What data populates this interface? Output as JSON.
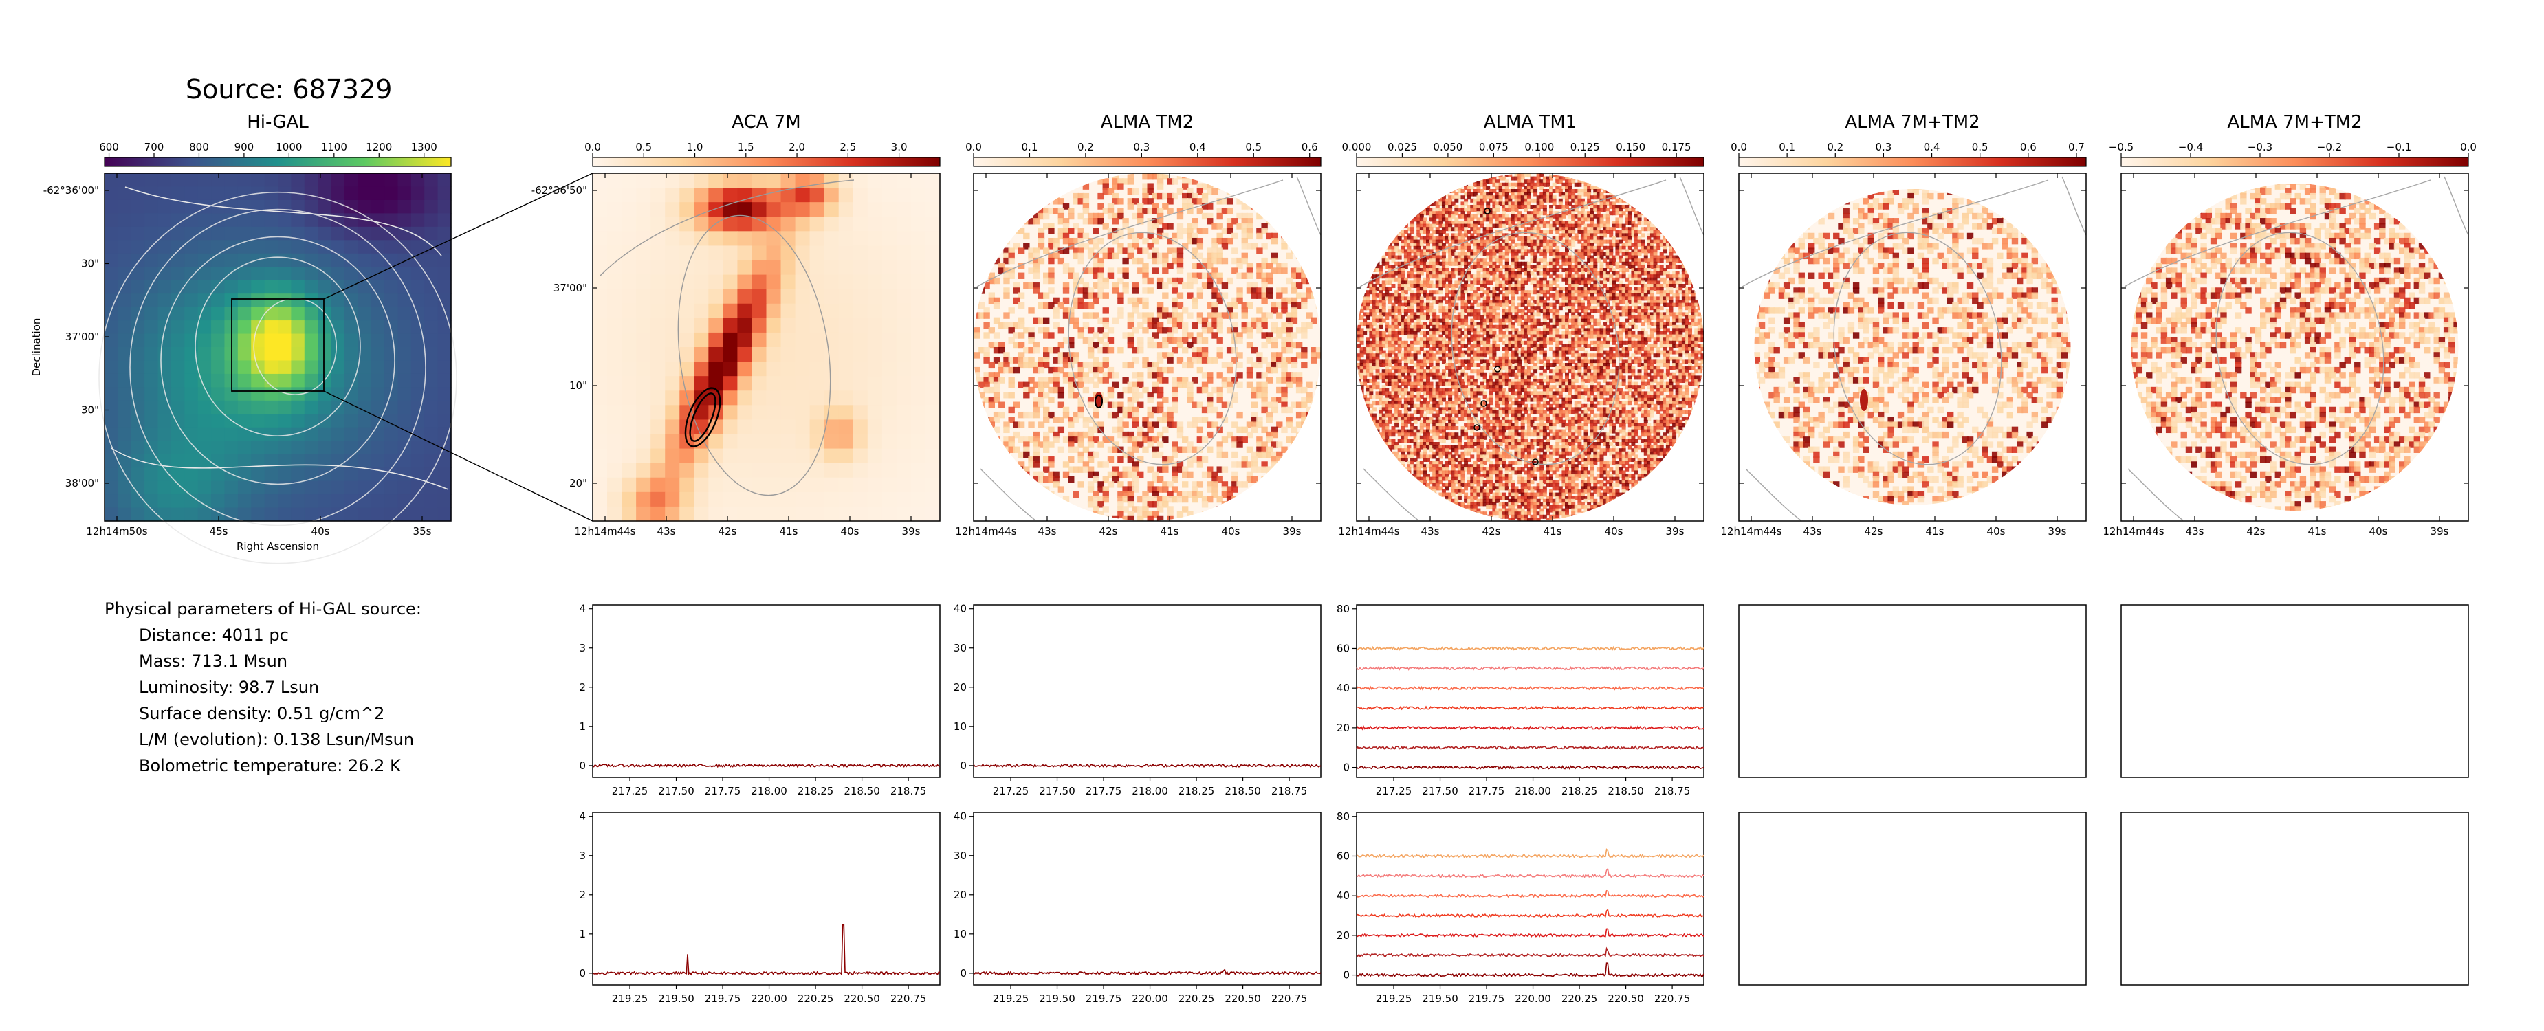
{
  "source_title": "Source: 687329",
  "parameters": {
    "heading": "Physical parameters of Hi-GAL source:",
    "lines": [
      "Distance: 4011 pc",
      "Mass: 713.1 Msun",
      "Luminosity: 98.7 Lsun",
      "Surface density: 0.51 g/cm^2",
      "L/M (evolution): 0.138 Lsun/Msun",
      "Bolometric temperature: 26.2 K"
    ]
  },
  "colors": {
    "higal_cmap": [
      "#440154",
      "#3b528b",
      "#21918c",
      "#5ec962",
      "#fde725"
    ],
    "alma_cmap": [
      "#fff5eb",
      "#fdd49e",
      "#fc8d59",
      "#d7301f",
      "#7f0000"
    ],
    "alma_cmap_reversed": [
      "#7f0000",
      "#d7301f",
      "#fc8d59",
      "#fdd49e",
      "#fff5eb"
    ],
    "spectrum_colors": [
      "#8b0000",
      "#b22222",
      "#dd1c1c",
      "#f03b20",
      "#fb6a4a",
      "#f47a7a",
      "#f4a460"
    ]
  },
  "chart_data": [
    {
      "type": "heatmap",
      "title": "Hi-GAL",
      "xlabel": "Right Ascension",
      "ylabel": "Declination",
      "colorbar_ticks": [
        "600",
        "700",
        "800",
        "900",
        "1000",
        "1100",
        "1200",
        "1300"
      ],
      "colorbar_range": [
        590,
        1360
      ],
      "x_ticks": [
        "12h14m50s",
        "45s",
        "40s",
        "35s"
      ],
      "y_ticks": [
        "-62°36'00\"",
        "30\"",
        "37'00\"",
        "30\"",
        "38'00\""
      ],
      "contours": true
    },
    {
      "type": "heatmap",
      "title": "ACA 7M",
      "colorbar_ticks": [
        "0.0",
        "0.5",
        "1.0",
        "1.5",
        "2.0",
        "2.5",
        "3.0"
      ],
      "colorbar_range": [
        0,
        3.4
      ],
      "x_ticks": [
        "12h14m44s",
        "43s",
        "42s",
        "41s",
        "40s",
        "39s"
      ],
      "y_ticks": [
        "-62°36'50\"",
        "37'00\"",
        "10\"",
        "20\""
      ]
    },
    {
      "type": "heatmap",
      "title": "ALMA TM2",
      "colorbar_ticks": [
        "0.0",
        "0.1",
        "0.2",
        "0.3",
        "0.4",
        "0.5",
        "0.6"
      ],
      "colorbar_range": [
        0,
        0.62
      ],
      "x_ticks": [
        "12h14m44s",
        "43s",
        "42s",
        "41s",
        "40s",
        "39s"
      ]
    },
    {
      "type": "heatmap",
      "title": "ALMA TM1",
      "colorbar_ticks": [
        "0.000",
        "0.025",
        "0.050",
        "0.075",
        "0.100",
        "0.125",
        "0.150",
        "0.175"
      ],
      "colorbar_range": [
        0,
        0.19
      ],
      "x_ticks": [
        "12h14m44s",
        "43s",
        "42s",
        "41s",
        "40s",
        "39s"
      ]
    },
    {
      "type": "heatmap",
      "title": "ALMA 7M+TM2",
      "colorbar_ticks": [
        "0.0",
        "0.1",
        "0.2",
        "0.3",
        "0.4",
        "0.5",
        "0.6",
        "0.7"
      ],
      "colorbar_range": [
        0,
        0.72
      ],
      "x_ticks": [
        "12h14m44s",
        "43s",
        "42s",
        "41s",
        "40s",
        "39s"
      ]
    },
    {
      "type": "heatmap",
      "title": "ALMA 7M+TM2",
      "colorbar_ticks": [
        "−0.5",
        "−0.4",
        "−0.3",
        "−0.2",
        "−0.1",
        "0.0"
      ],
      "colorbar_range": [
        -0.5,
        0
      ],
      "x_ticks": [
        "12h14m44s",
        "43s",
        "42s",
        "41s",
        "40s",
        "39s"
      ]
    },
    {
      "type": "line",
      "panel": "ACA 7M spectrum, upper band",
      "x_ticks": [
        "217.25",
        "217.50",
        "217.75",
        "218.00",
        "218.25",
        "218.50",
        "218.75"
      ],
      "xlim": [
        217.05,
        218.92
      ],
      "y_ticks": [
        "0",
        "1",
        "2",
        "3",
        "4"
      ],
      "ylim": [
        -0.3,
        4.1
      ],
      "series_offsets": [
        0
      ],
      "peaks": []
    },
    {
      "type": "line",
      "panel": "ALMA TM2 spectrum, upper band",
      "x_ticks": [
        "217.25",
        "217.50",
        "217.75",
        "218.00",
        "218.25",
        "218.50",
        "218.75"
      ],
      "xlim": [
        217.05,
        218.92
      ],
      "y_ticks": [
        "0",
        "10",
        "20",
        "30",
        "40"
      ],
      "ylim": [
        -3,
        41
      ],
      "series_offsets": [
        0
      ],
      "peaks": []
    },
    {
      "type": "line",
      "panel": "ALMA TM1 spectrum, upper band",
      "x_ticks": [
        "217.25",
        "217.50",
        "217.75",
        "218.00",
        "218.25",
        "218.50",
        "218.75"
      ],
      "xlim": [
        217.05,
        218.92
      ],
      "y_ticks": [
        "0",
        "20",
        "40",
        "60",
        "80"
      ],
      "ylim": [
        -5,
        82
      ],
      "series_offsets": [
        0,
        10,
        20,
        30,
        40,
        50,
        60
      ],
      "peaks": []
    },
    {
      "type": "line",
      "panel": "ACA 7M spectrum, lower band",
      "x_ticks": [
        "219.25",
        "219.50",
        "219.75",
        "220.00",
        "220.25",
        "220.50",
        "220.75"
      ],
      "xlim": [
        219.05,
        220.92
      ],
      "y_ticks": [
        "0",
        "1",
        "2",
        "3",
        "4"
      ],
      "ylim": [
        -0.3,
        4.1
      ],
      "series_offsets": [
        0
      ],
      "peaks": [
        {
          "x": 219.56,
          "h": 0.5
        },
        {
          "x": 220.4,
          "h": 1.25
        }
      ]
    },
    {
      "type": "line",
      "panel": "ALMA TM2 spectrum, lower band",
      "x_ticks": [
        "219.25",
        "219.50",
        "219.75",
        "220.00",
        "220.25",
        "220.50",
        "220.75"
      ],
      "xlim": [
        219.05,
        220.92
      ],
      "y_ticks": [
        "0",
        "10",
        "20",
        "30",
        "40"
      ],
      "ylim": [
        -3,
        41
      ],
      "series_offsets": [
        0
      ],
      "peaks": [
        {
          "x": 220.4,
          "h": 0.8
        }
      ]
    },
    {
      "type": "line",
      "panel": "ALMA TM1 spectrum, lower band",
      "x_ticks": [
        "219.25",
        "219.50",
        "219.75",
        "220.00",
        "220.25",
        "220.50",
        "220.75"
      ],
      "xlim": [
        219.05,
        220.92
      ],
      "y_ticks": [
        "0",
        "20",
        "40",
        "60",
        "80"
      ],
      "ylim": [
        -5,
        82
      ],
      "series_offsets": [
        0,
        10,
        20,
        30,
        40,
        50,
        60
      ],
      "peaks": [
        {
          "x": 220.4,
          "h": 6
        }
      ]
    }
  ]
}
